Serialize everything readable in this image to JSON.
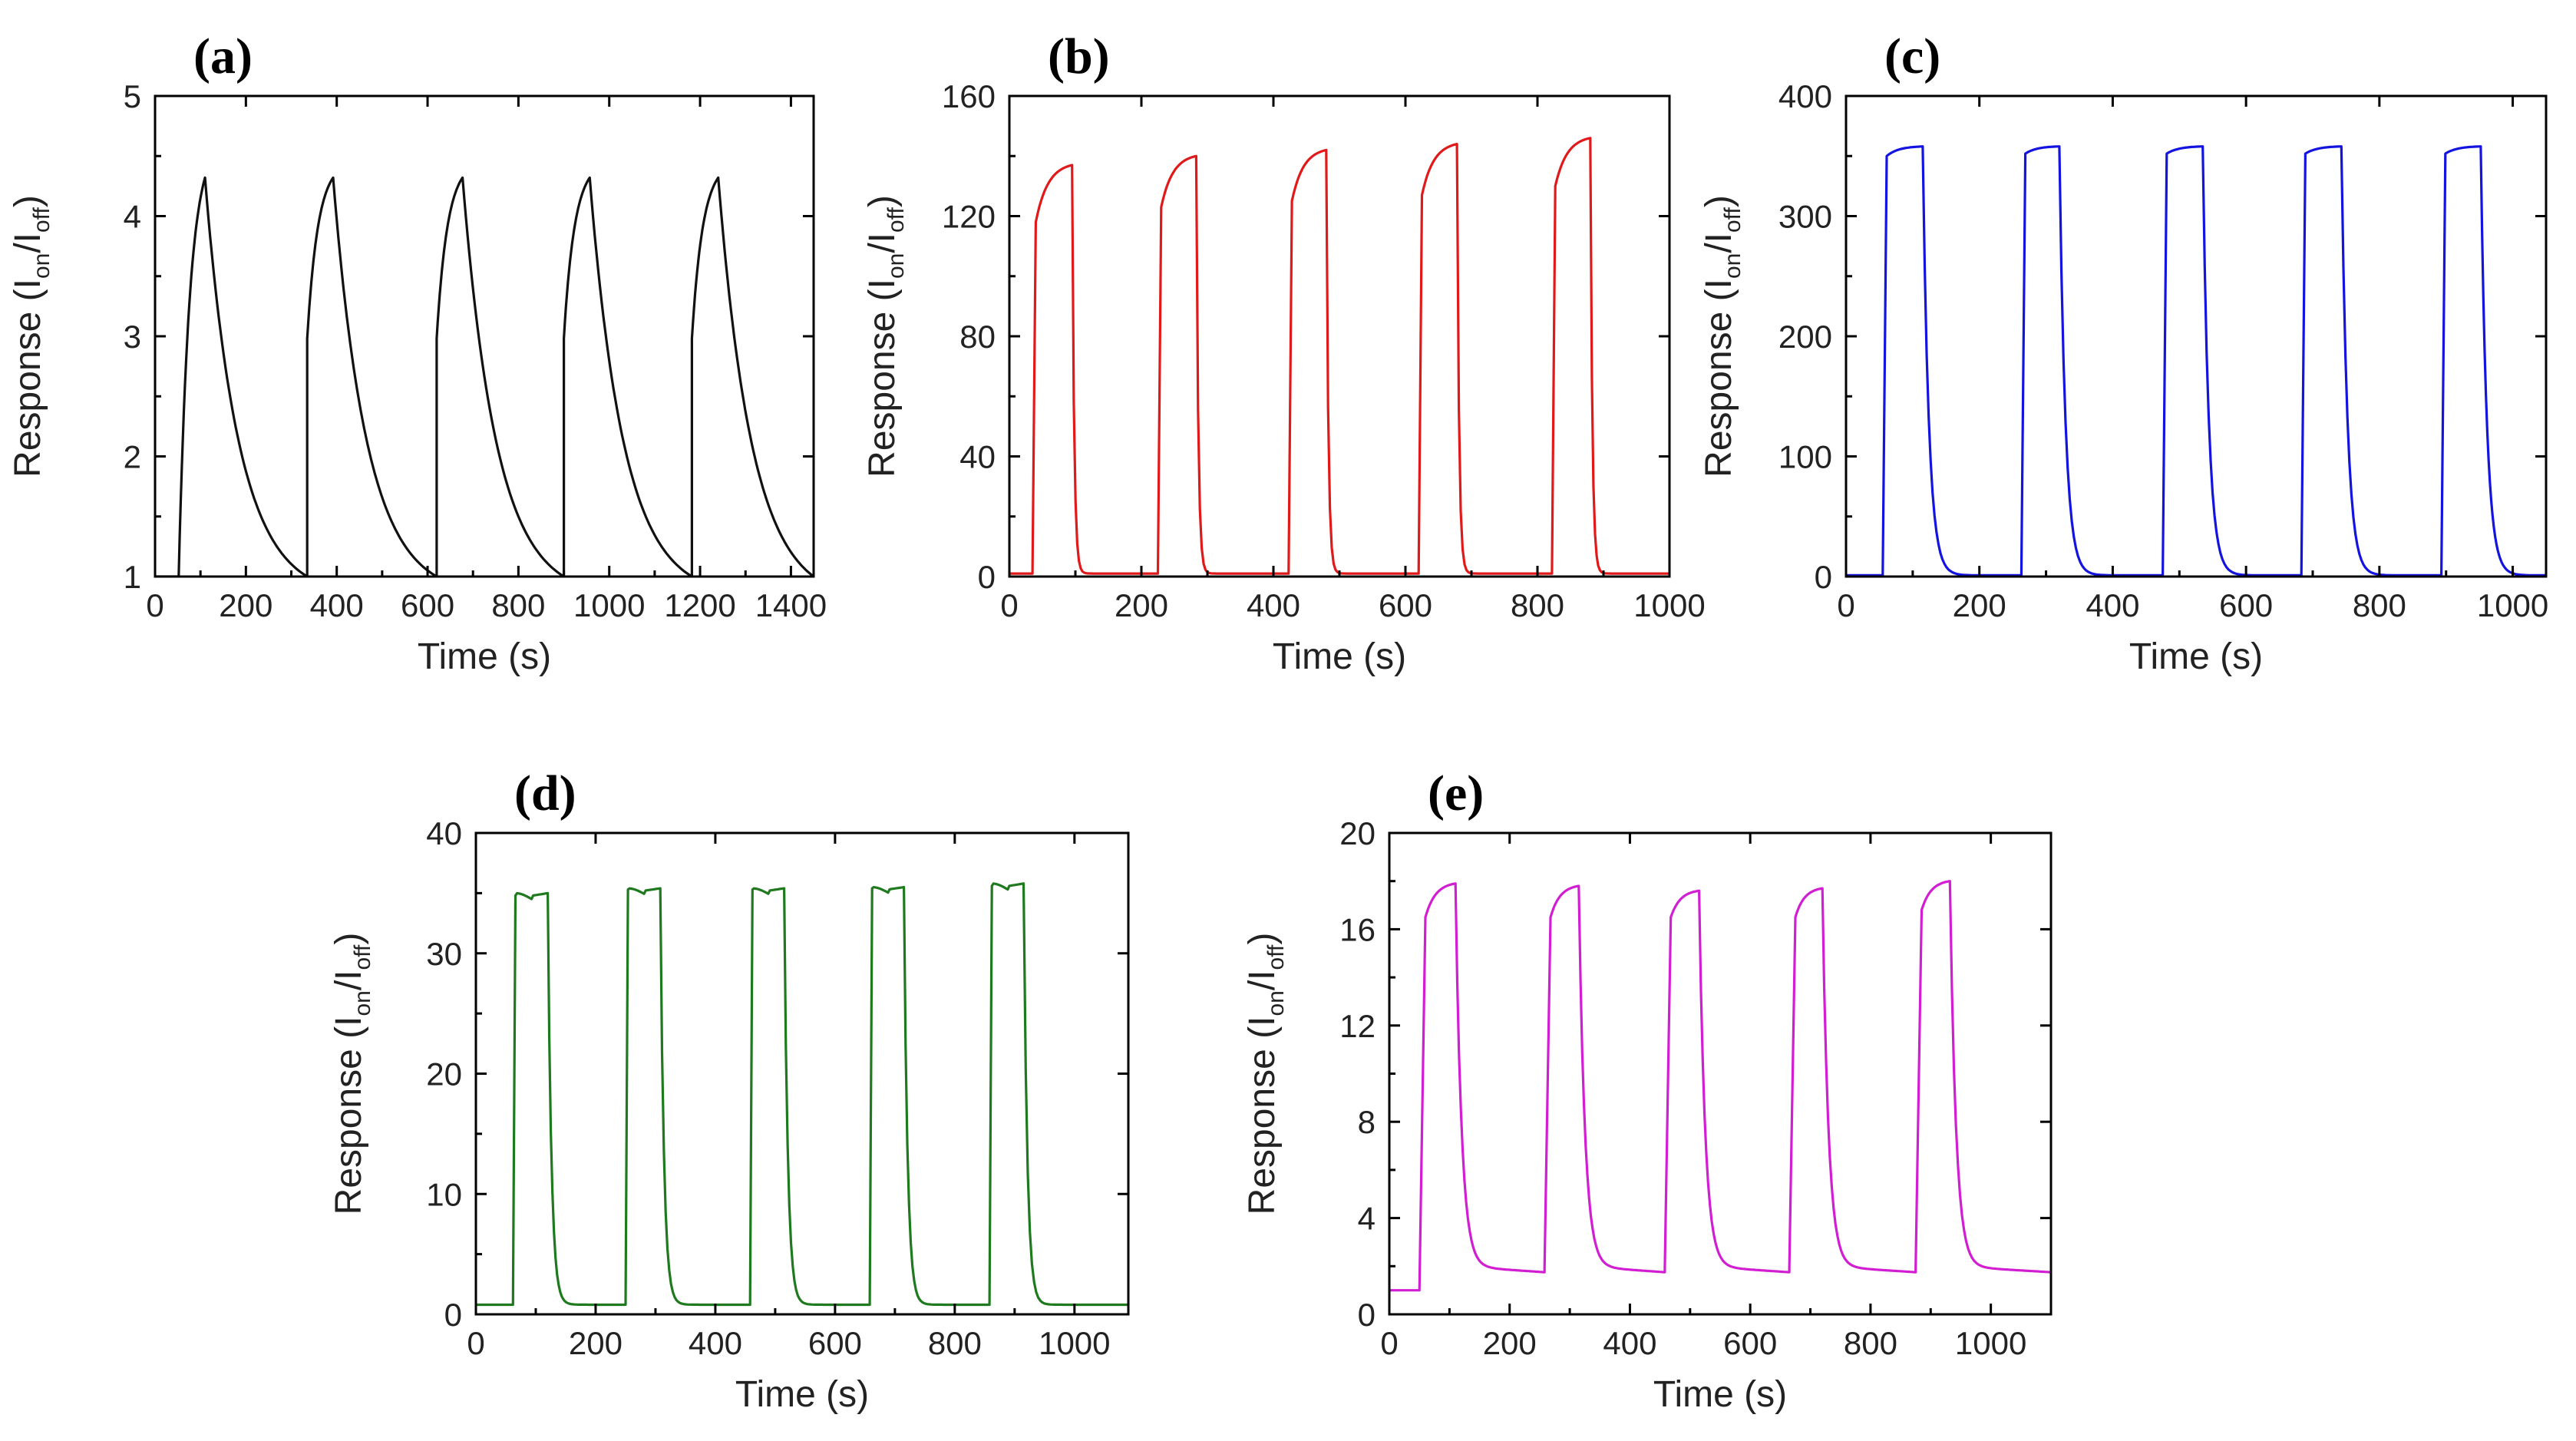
{
  "chart_data": [
    {
      "id": "a",
      "type": "line",
      "title": "(a)",
      "xlabel": "Time (s)",
      "ylabel": {
        "main": "Response (I",
        "sub1": "on",
        "mid": "/I",
        "sub2": "off",
        "end": ")"
      },
      "xlim": [
        0,
        1450
      ],
      "ylim": [
        1,
        5
      ],
      "xticks": [
        0,
        200,
        400,
        600,
        800,
        1000,
        1200,
        1400
      ],
      "yticks": [
        1,
        2,
        3,
        4,
        5
      ],
      "grid": false,
      "color": "#111111",
      "series": [
        {
          "name": "a",
          "shape": "slow",
          "base": 1.0,
          "peak": 4.32,
          "period": 284,
          "pulses": [
            {
              "on": 52,
              "off": 110,
              "start": 1.0
            },
            {
              "on": 335,
              "off": 392,
              "start": 2.98
            },
            {
              "on": 620,
              "off": 677,
              "start": 2.98
            },
            {
              "on": 900,
              "off": 957,
              "start": 2.98
            },
            {
              "on": 1182,
              "off": 1240,
              "start": 2.98
            }
          ]
        }
      ]
    },
    {
      "id": "b",
      "type": "line",
      "title": "(b)",
      "xlabel": "Time (s)",
      "ylabel": {
        "main": "Response (I",
        "sub1": "on",
        "mid": "/I",
        "sub2": "off",
        "end": ")"
      },
      "xlim": [
        0,
        1000
      ],
      "ylim": [
        0,
        160
      ],
      "xticks": [
        0,
        200,
        400,
        600,
        800,
        1000
      ],
      "yticks": [
        0,
        40,
        80,
        120,
        160
      ],
      "grid": false,
      "color": "#e01a1a",
      "series": [
        {
          "name": "b",
          "shape": "fast",
          "base": 1.0,
          "pulses": [
            {
              "on": 35,
              "off": 95,
              "shoulder": 118,
              "peak": 137
            },
            {
              "on": 225,
              "off": 283,
              "shoulder": 123,
              "peak": 140
            },
            {
              "on": 423,
              "off": 480,
              "shoulder": 125,
              "peak": 142
            },
            {
              "on": 620,
              "off": 678,
              "shoulder": 127,
              "peak": 144
            },
            {
              "on": 822,
              "off": 880,
              "shoulder": 130,
              "peak": 146
            }
          ]
        }
      ]
    },
    {
      "id": "c",
      "type": "line",
      "title": "(c)",
      "xlabel": "Time (s)",
      "ylabel": {
        "main": "Response (I",
        "sub1": "on",
        "mid": "/I",
        "sub2": "off",
        "end": ")"
      },
      "xlim": [
        0,
        1050
      ],
      "ylim": [
        0,
        400
      ],
      "xticks": [
        0,
        200,
        400,
        600,
        800,
        1000
      ],
      "yticks": [
        0,
        100,
        200,
        300,
        400
      ],
      "grid": false,
      "color": "#1414e0",
      "series": [
        {
          "name": "c",
          "shape": "square",
          "base": 1.0,
          "pulses": [
            {
              "on": 55,
              "off": 115,
              "shoulder": 350,
              "peak": 358
            },
            {
              "on": 263,
              "off": 320,
              "shoulder": 352,
              "peak": 358
            },
            {
              "on": 475,
              "off": 535,
              "shoulder": 352,
              "peak": 358
            },
            {
              "on": 683,
              "off": 743,
              "shoulder": 352,
              "peak": 358
            },
            {
              "on": 893,
              "off": 952,
              "shoulder": 352,
              "peak": 358
            }
          ]
        }
      ]
    },
    {
      "id": "d",
      "type": "line",
      "title": "(d)",
      "xlabel": "Time (s)",
      "ylabel": {
        "main": "Response (I",
        "sub1": "on",
        "mid": "/I",
        "sub2": "off",
        "end": ")"
      },
      "xlim": [
        0,
        1090
      ],
      "ylim": [
        0,
        40
      ],
      "xticks": [
        0,
        200,
        400,
        600,
        800,
        1000
      ],
      "yticks": [
        0,
        10,
        20,
        30,
        40
      ],
      "grid": false,
      "color": "#1f7a1f",
      "series": [
        {
          "name": "d",
          "shape": "notch",
          "base": 0.8,
          "pulses": [
            {
              "on": 62,
              "off": 120,
              "shoulder": 34.8,
              "peak": 35.0
            },
            {
              "on": 250,
              "off": 308,
              "shoulder": 35.3,
              "peak": 35.4
            },
            {
              "on": 458,
              "off": 515,
              "shoulder": 35.3,
              "peak": 35.4
            },
            {
              "on": 658,
              "off": 715,
              "shoulder": 35.4,
              "peak": 35.5
            },
            {
              "on": 858,
              "off": 915,
              "shoulder": 35.6,
              "peak": 35.8
            }
          ]
        }
      ]
    },
    {
      "id": "e",
      "type": "line",
      "title": "(e)",
      "xlabel": "Time (s)",
      "ylabel": {
        "main": "Response (I",
        "sub1": "on",
        "mid": "/I",
        "sub2": "off",
        "end": ")"
      },
      "xlim": [
        0,
        1100
      ],
      "ylim": [
        0,
        20
      ],
      "xticks": [
        0,
        200,
        400,
        600,
        800,
        1000
      ],
      "yticks": [
        0,
        4,
        8,
        12,
        16,
        20
      ],
      "grid": false,
      "color": "#d21ed2",
      "series": [
        {
          "name": "e",
          "shape": "tail",
          "base": 1.0,
          "tail_level": 2.0,
          "pulses": [
            {
              "on": 50,
              "off": 110,
              "start": 1.0,
              "shoulder": 16.5,
              "peak": 17.9
            },
            {
              "on": 258,
              "off": 315,
              "start": 1.9,
              "shoulder": 16.5,
              "peak": 17.8
            },
            {
              "on": 458,
              "off": 515,
              "start": 1.9,
              "shoulder": 16.5,
              "peak": 17.6
            },
            {
              "on": 665,
              "off": 720,
              "start": 1.9,
              "shoulder": 16.5,
              "peak": 17.7
            },
            {
              "on": 875,
              "off": 932,
              "start": 1.9,
              "shoulder": 16.8,
              "peak": 18.0
            }
          ]
        }
      ]
    }
  ]
}
